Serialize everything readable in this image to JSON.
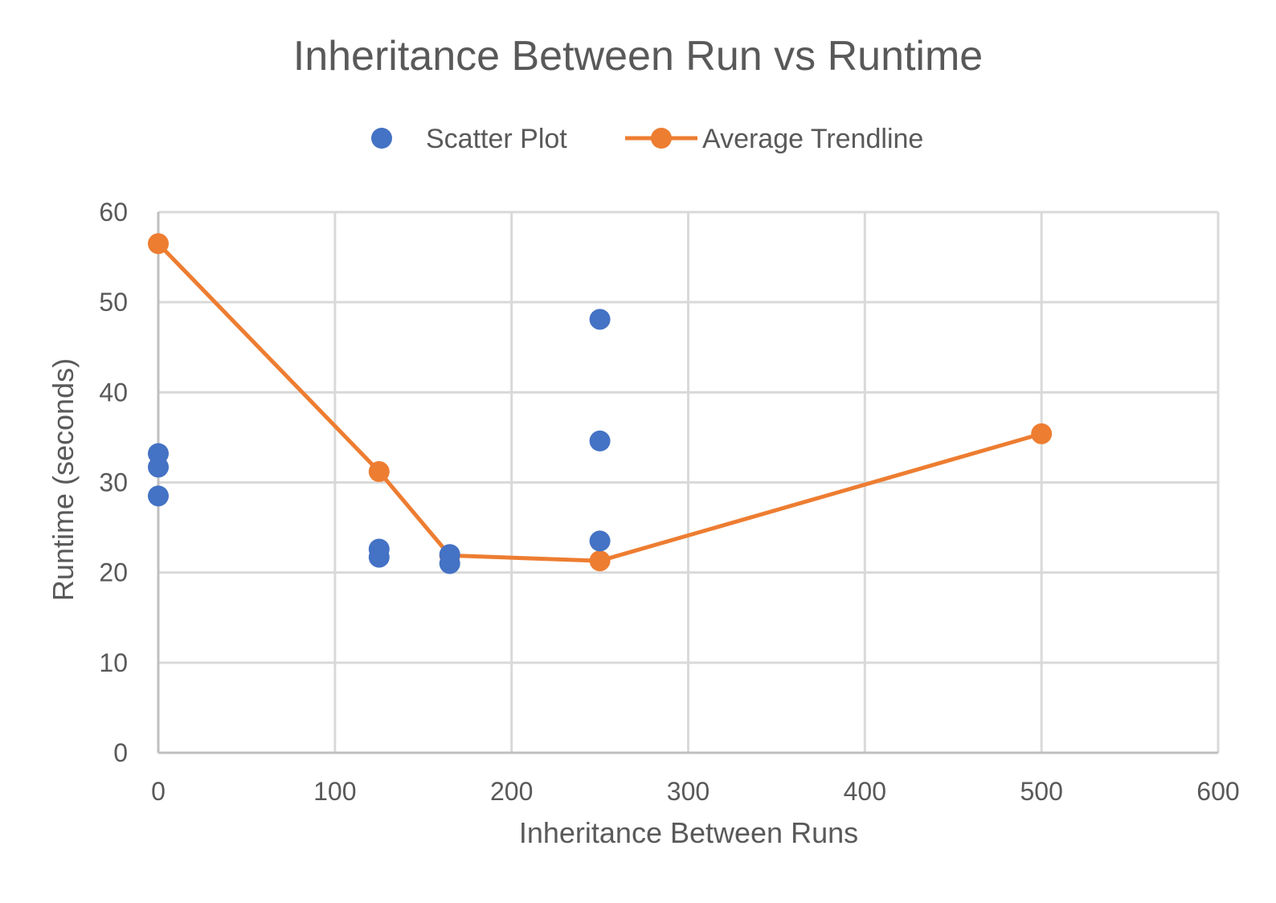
{
  "chart_data": {
    "type": "scatter",
    "title": "Inheritance Between Run vs Runtime",
    "xlabel": "Inheritance Between Runs",
    "ylabel": "Runtime (seconds)",
    "xlim": [
      0,
      600
    ],
    "ylim": [
      0,
      60
    ],
    "x_ticks": [
      "0",
      "100",
      "200",
      "300",
      "400",
      "500",
      "600"
    ],
    "y_ticks": [
      "0",
      "10",
      "20",
      "30",
      "40",
      "50",
      "60"
    ],
    "grid": true,
    "legend_position": "top",
    "series": [
      {
        "name": "Scatter Plot",
        "type": "scatter",
        "color": "#4472C4",
        "points": [
          {
            "x": 0,
            "y": 33.2
          },
          {
            "x": 0,
            "y": 31.7
          },
          {
            "x": 0,
            "y": 28.5
          },
          {
            "x": 125,
            "y": 22.6
          },
          {
            "x": 125,
            "y": 21.7
          },
          {
            "x": 165,
            "y": 22.0
          },
          {
            "x": 165,
            "y": 21.0
          },
          {
            "x": 250,
            "y": 48.1
          },
          {
            "x": 250,
            "y": 34.6
          },
          {
            "x": 250,
            "y": 23.5
          }
        ]
      },
      {
        "name": "Average Trendline",
        "type": "line",
        "color": "#ED7D31",
        "points": [
          {
            "x": 0,
            "y": 56.5
          },
          {
            "x": 125,
            "y": 31.2
          },
          {
            "x": 165,
            "y": 21.9
          },
          {
            "x": 250,
            "y": 21.3
          },
          {
            "x": 500,
            "y": 35.4
          }
        ]
      }
    ]
  }
}
